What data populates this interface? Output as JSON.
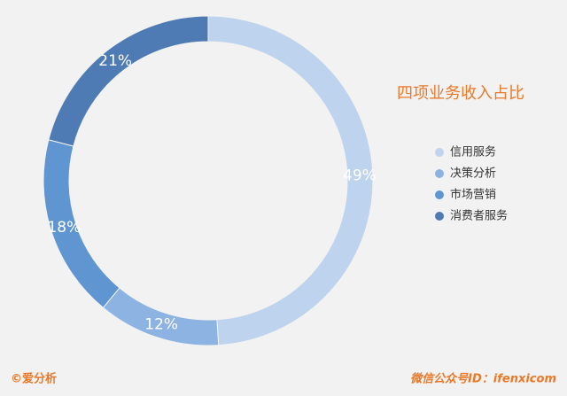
{
  "chart_data": {
    "type": "donut",
    "title": "四项业务收入占比",
    "categories": [
      "信用服务",
      "决策分析",
      "市场营销",
      "消费者服务"
    ],
    "values": [
      49,
      12,
      18,
      21
    ],
    "value_labels": [
      "49%",
      "12%",
      "18%",
      "21%"
    ],
    "colors": [
      "#bed3ee",
      "#8db3e2",
      "#5f96d2",
      "#4e7bb4"
    ],
    "legend": "right"
  },
  "footer": {
    "left": "©爱分析",
    "right": "微信公众号ID：ifenxicom"
  }
}
